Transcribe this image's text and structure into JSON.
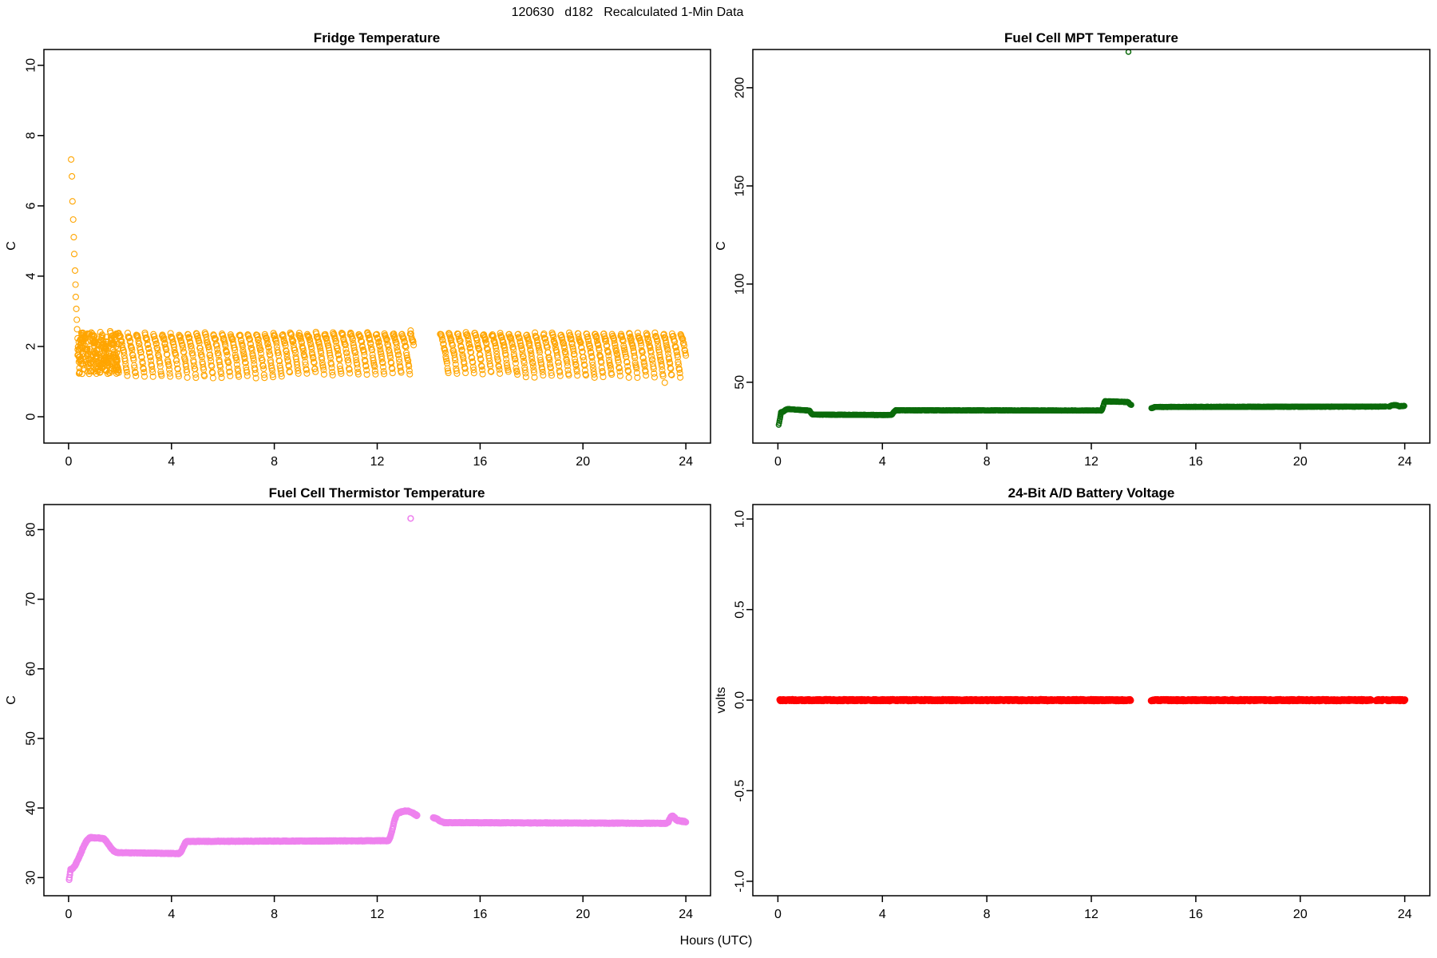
{
  "figure": {
    "title": "120630   d182   Recalculated 1-Min Data",
    "xlabel": "Hours (UTC)",
    "background": "#FFFFFF",
    "axis_color": "#000000"
  },
  "chart_data": [
    {
      "id": "fridge-temperature",
      "type": "scatter",
      "title": "Fridge Temperature",
      "ylabel": "C",
      "marker": "open-circle",
      "color": "#FFA500",
      "xlim": [
        -0.96,
        24.96
      ],
      "ylim": [
        -0.75,
        10.45
      ],
      "xticks": [
        0,
        4,
        8,
        12,
        16,
        20,
        24
      ],
      "yticks": [
        0,
        2,
        4,
        6,
        8,
        10
      ],
      "ytick_labels": [
        "0",
        "2",
        "4",
        "6",
        "8",
        "10"
      ],
      "marker_r": 3.5,
      "stroke_w": 1.1,
      "grid": false,
      "segments": [
        {
          "kind": "pts",
          "pts": [
            [
              0.1,
              7.32
            ],
            [
              0.13,
              6.84
            ],
            [
              0.15,
              6.13
            ],
            [
              0.18,
              5.61
            ],
            [
              0.2,
              5.11
            ],
            [
              0.22,
              4.63
            ],
            [
              0.25,
              4.16
            ],
            [
              0.27,
              3.76
            ],
            [
              0.28,
              3.41
            ],
            [
              0.3,
              3.07
            ],
            [
              0.32,
              2.76
            ],
            [
              0.33,
              2.49
            ],
            [
              0.35,
              2.23
            ],
            [
              0.37,
              1.99
            ],
            [
              0.38,
              1.76
            ],
            [
              0.4,
              1.56
            ],
            [
              0.42,
              1.39
            ],
            [
              0.43,
              1.28
            ]
          ]
        },
        {
          "kind": "noise",
          "x0": 0.35,
          "x1": 1.95,
          "top": 2.38,
          "bottom": 1.22,
          "per_min": 2
        },
        {
          "kind": "saw",
          "x0": 0.5,
          "x1": 1.95,
          "top": 2.3,
          "bottom": 1.3,
          "period_min": 22,
          "ease": 1.4,
          "j": 0.18
        },
        {
          "kind": "saw",
          "x0": 1.95,
          "x1": 13.42,
          "top": 2.36,
          "bottom": 1.14,
          "period_min": 20,
          "ease": 1.5,
          "j": 0.05
        },
        {
          "kind": "saw",
          "x0": 14.45,
          "x1": 24.0,
          "top": 2.36,
          "bottom": 1.16,
          "period_min": 20,
          "ease": 1.5,
          "j": 0.05
        },
        {
          "kind": "pts",
          "pts": [
            [
              23.18,
              0.97
            ],
            [
              13.3,
              2.45
            ]
          ]
        }
      ]
    },
    {
      "id": "fuel-cell-mpt-temperature",
      "type": "scatter",
      "title": "Fuel Cell MPT Temperature",
      "ylabel": "C",
      "marker": "open-circle",
      "color": "#0B6B0B",
      "xlim": [
        -0.96,
        24.96
      ],
      "ylim": [
        19.0,
        219.5
      ],
      "xticks": [
        0,
        4,
        8,
        12,
        16,
        20,
        24
      ],
      "yticks": [
        50,
        100,
        150,
        200
      ],
      "ytick_labels": [
        "50",
        "100",
        "150",
        "200"
      ],
      "marker_r": 3.0,
      "stroke_w": 1.5,
      "grid": false,
      "segments": [
        {
          "kind": "pts",
          "pts": [
            [
              0.03,
              28.3
            ],
            [
              0.05,
              29.3
            ],
            [
              0.06,
              30.3
            ],
            [
              0.08,
              31.3
            ],
            [
              0.09,
              32.3
            ],
            [
              0.1,
              33.2
            ],
            [
              0.11,
              34.0
            ],
            [
              0.12,
              34.7
            ]
          ]
        },
        {
          "kind": "scurve",
          "x0": 0.12,
          "x1": 0.4,
          "y0": 34.7,
          "y1": 36.3,
          "j": 0.15
        },
        {
          "kind": "ramp",
          "x0": 0.4,
          "x1": 1.18,
          "y0": 36.3,
          "y1": 35.6,
          "j": 0.12
        },
        {
          "kind": "scurve",
          "x0": 1.18,
          "x1": 1.34,
          "y0": 35.6,
          "y1": 33.6,
          "j": 0.12
        },
        {
          "kind": "ramp",
          "x0": 1.34,
          "x1": 4.32,
          "y0": 33.5,
          "y1": 33.3,
          "j": 0.1
        },
        {
          "kind": "scurve",
          "x0": 4.32,
          "x1": 4.54,
          "y0": 33.3,
          "y1": 35.9,
          "j": 0.15
        },
        {
          "kind": "ramp",
          "x0": 4.54,
          "x1": 12.38,
          "y0": 35.7,
          "y1": 35.6,
          "j": 0.1
        },
        {
          "kind": "scurve",
          "x0": 12.38,
          "x1": 12.54,
          "y0": 35.6,
          "y1": 40.4,
          "j": 0.18
        },
        {
          "kind": "ramp",
          "x0": 12.54,
          "x1": 13.38,
          "y0": 40.3,
          "y1": 39.9,
          "j": 0.15
        },
        {
          "kind": "scurve",
          "x0": 13.38,
          "x1": 13.54,
          "y0": 39.9,
          "y1": 38.4,
          "j": 0.15
        },
        {
          "kind": "pts",
          "pts": [
            [
              13.42,
              218.3
            ]
          ]
        },
        {
          "kind": "scurve",
          "x0": 14.3,
          "x1": 14.44,
          "y0": 36.7,
          "y1": 37.4,
          "j": 0.12
        },
        {
          "kind": "ramp",
          "x0": 14.44,
          "x1": 23.28,
          "y0": 37.4,
          "y1": 37.6,
          "j": 0.1
        },
        {
          "kind": "arc",
          "x0": 23.4,
          "x1": 23.8,
          "y0": 37.5,
          "peak": 38.4,
          "y1": 37.7,
          "j": 0.12
        },
        {
          "kind": "ramp",
          "x0": 23.82,
          "x1": 24.0,
          "y0": 37.8,
          "y1": 37.9,
          "j": 0.15
        }
      ]
    },
    {
      "id": "fuel-cell-thermistor-temperature",
      "type": "scatter",
      "title": "Fuel Cell Thermistor Temperature",
      "ylabel": "C",
      "marker": "open-circle",
      "color": "#EE82EE",
      "xlim": [
        -0.96,
        24.96
      ],
      "ylim": [
        27.4,
        83.6
      ],
      "xticks": [
        0,
        4,
        8,
        12,
        16,
        20,
        24
      ],
      "yticks": [
        30,
        40,
        50,
        60,
        70,
        80
      ],
      "ytick_labels": [
        "30",
        "40",
        "50",
        "60",
        "70",
        "80"
      ],
      "marker_r": 3.4,
      "stroke_w": 1.6,
      "grid": false,
      "segments": [
        {
          "kind": "pts",
          "pts": [
            [
              0.02,
              29.7
            ],
            [
              0.03,
              30.0
            ],
            [
              0.05,
              30.4
            ],
            [
              0.06,
              30.8
            ],
            [
              0.08,
              31.2
            ]
          ]
        },
        {
          "kind": "scurve",
          "x0": 0.08,
          "x1": 0.85,
          "y0": 31.2,
          "y1": 35.7,
          "j": 0.07
        },
        {
          "kind": "ramp",
          "x0": 0.85,
          "x1": 1.3,
          "y0": 35.75,
          "y1": 35.65,
          "j": 0.06
        },
        {
          "kind": "scurve",
          "x0": 1.3,
          "x1": 1.85,
          "y0": 35.65,
          "y1": 33.7,
          "j": 0.06
        },
        {
          "kind": "ramp",
          "x0": 1.85,
          "x1": 4.3,
          "y0": 33.6,
          "y1": 33.45,
          "j": 0.05
        },
        {
          "kind": "scurve",
          "x0": 4.3,
          "x1": 4.6,
          "y0": 33.5,
          "y1": 35.15,
          "j": 0.06
        },
        {
          "kind": "ramp",
          "x0": 4.6,
          "x1": 12.42,
          "y0": 35.2,
          "y1": 35.3,
          "j": 0.05
        },
        {
          "kind": "scurve",
          "x0": 12.42,
          "x1": 12.8,
          "y0": 35.3,
          "y1": 39.2,
          "j": 0.08
        },
        {
          "kind": "arc",
          "x0": 12.8,
          "x1": 13.55,
          "y0": 39.25,
          "peak": 39.55,
          "y1": 38.9,
          "j": 0.07
        },
        {
          "kind": "pts",
          "pts": [
            [
              13.3,
              81.6
            ]
          ]
        },
        {
          "kind": "scurve",
          "x0": 14.18,
          "x1": 14.6,
          "y0": 38.6,
          "y1": 37.95,
          "j": 0.06
        },
        {
          "kind": "ramp",
          "x0": 14.6,
          "x1": 23.25,
          "y0": 37.9,
          "y1": 37.8,
          "j": 0.05
        },
        {
          "kind": "arc",
          "x0": 23.32,
          "x1": 23.62,
          "y0": 38.0,
          "peak": 38.85,
          "y1": 38.3,
          "j": 0.07
        },
        {
          "kind": "ramp",
          "x0": 23.65,
          "x1": 24.0,
          "y0": 38.25,
          "y1": 38.0,
          "j": 0.08
        }
      ]
    },
    {
      "id": "battery-voltage",
      "type": "scatter",
      "title": "24-Bit A/D Battery Voltage",
      "ylabel": "volts",
      "marker": "open-circle",
      "color": "#FF0000",
      "xlim": [
        -0.96,
        24.96
      ],
      "ylim": [
        -1.08,
        1.08
      ],
      "xticks": [
        0,
        4,
        8,
        12,
        16,
        20,
        24
      ],
      "yticks": [
        -1.0,
        -0.5,
        0.0,
        0.5,
        1.0
      ],
      "ytick_labels": [
        "-1.0",
        "-0.5",
        "0.0",
        "0.5",
        "1.0"
      ],
      "marker_r": 3.6,
      "stroke_w": 1.8,
      "grid": false,
      "segments": [
        {
          "kind": "flat",
          "x0": 0.08,
          "x1": 13.5,
          "y": 0.0,
          "j": 0.003
        },
        {
          "kind": "flat",
          "x0": 14.3,
          "x1": 22.72,
          "y": 0.0,
          "j": 0.003
        },
        {
          "kind": "flat",
          "x0": 22.9,
          "x1": 23.17,
          "y": 0.0,
          "j": 0.003
        },
        {
          "kind": "flat",
          "x0": 23.3,
          "x1": 24.0,
          "y": 0.0,
          "j": 0.003
        }
      ]
    }
  ]
}
